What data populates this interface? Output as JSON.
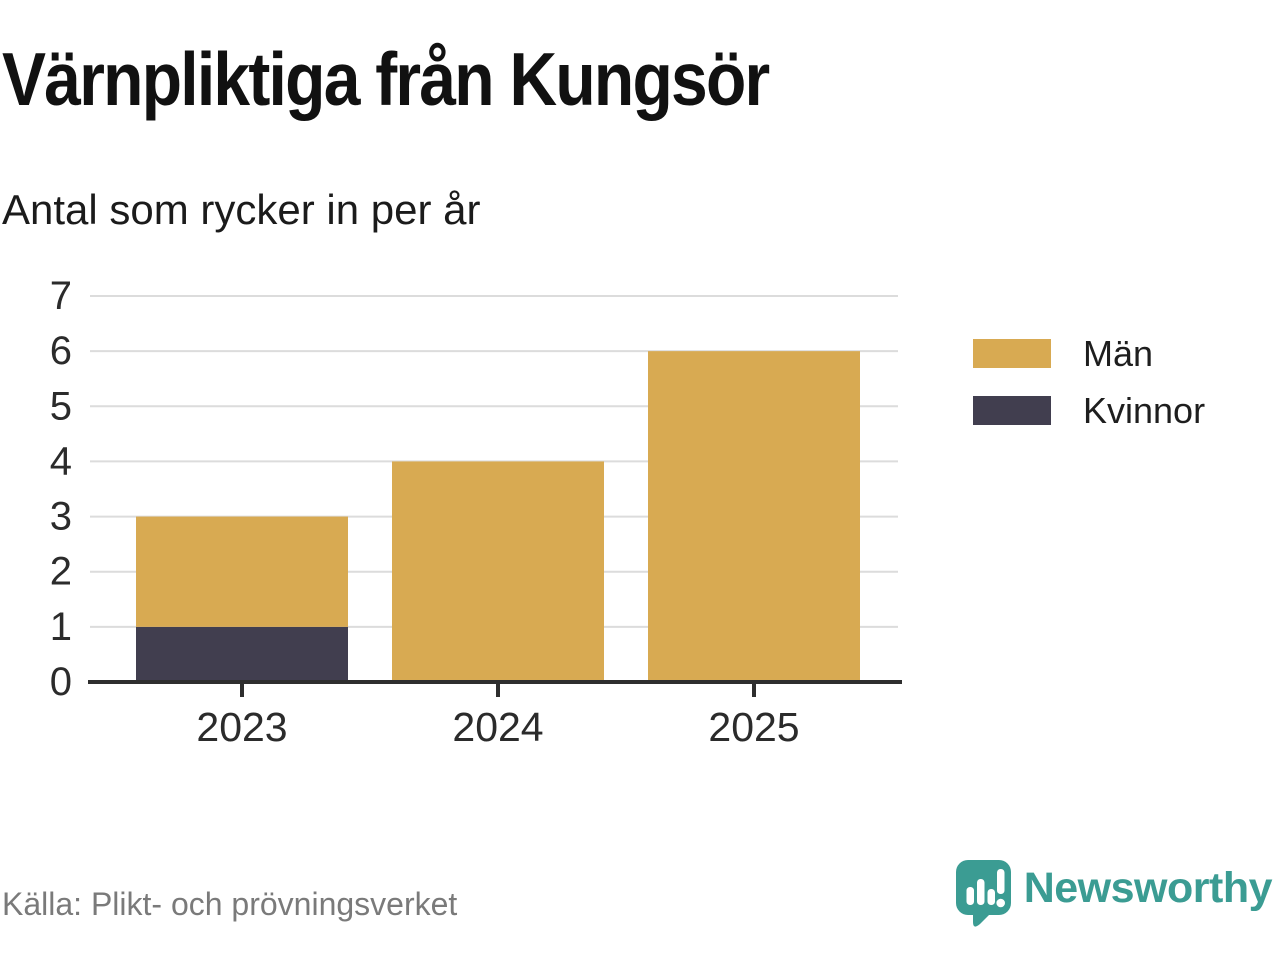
{
  "header": {
    "title": "Värnpliktiga från Kungsör",
    "subtitle": "Antal som rycker in per år"
  },
  "footer": {
    "source": "Källa: Plikt- och prövningsverket",
    "brand": {
      "wordmark": "Newsworthy",
      "logo_icon": "newsworthy-speech-bubble-bar-chart-icon"
    }
  },
  "colors": {
    "men": "#D8AA52",
    "women": "#413E4F",
    "gridline": "#DCDCDC",
    "axis": "#2E2E2E",
    "tick_label": "#2B2B2B",
    "title_text": "#111111",
    "source_text": "#7A7A7A",
    "brand_teal": "#3B9C93",
    "background": "#FFFFFF"
  },
  "chart_data": {
    "type": "bar",
    "stacked": true,
    "title": "Värnpliktiga från Kungsör",
    "subtitle": "Antal som rycker in per år",
    "categories": [
      "2023",
      "2024",
      "2025"
    ],
    "series": [
      {
        "name": "Kvinnor",
        "color": "#413E4F",
        "values": [
          1,
          0,
          0
        ]
      },
      {
        "name": "Män",
        "color": "#D8AA52",
        "values": [
          2,
          4,
          6
        ]
      }
    ],
    "totals": [
      3,
      4,
      6
    ],
    "xlabel": "",
    "ylabel": "",
    "ylim": [
      0,
      7
    ],
    "yticks": [
      0,
      1,
      2,
      3,
      4,
      5,
      6,
      7
    ],
    "grid": true,
    "legend": {
      "position": "right",
      "entries": [
        {
          "label": "Män",
          "color": "#D8AA52"
        },
        {
          "label": "Kvinnor",
          "color": "#413E4F"
        }
      ]
    },
    "source": "Källa: Plikt- och prövningsverket"
  }
}
